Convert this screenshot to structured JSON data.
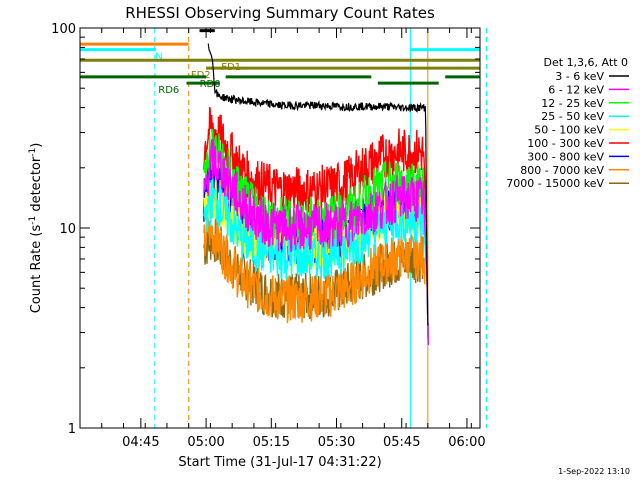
{
  "chart_data": {
    "type": "line",
    "title": "RHESSI Observing Summary Count Rates",
    "xlabel": "Start Time (31-Jul-17 04:31:22)",
    "ylabel_main": "Count Rate (s",
    "ylabel_sup": "-1",
    "ylabel_tail": " detector",
    "ylabel_end": ")",
    "yscale": "log",
    "ylim": [
      1,
      100
    ],
    "xlim_minutes": [
      0,
      92
    ],
    "y_ticks": [
      {
        "v": 1,
        "label": "1"
      },
      {
        "v": 10,
        "label": "10"
      },
      {
        "v": 100,
        "label": "100"
      }
    ],
    "x_ticks": [
      {
        "m": 14,
        "label": "04:45"
      },
      {
        "m": 29,
        "label": "05:00"
      },
      {
        "m": 44,
        "label": "05:15"
      },
      {
        "m": 59,
        "label": "05:30"
      },
      {
        "m": 74,
        "label": "05:45"
      },
      {
        "m": 89,
        "label": "06:00"
      }
    ],
    "legend_header": "Det 1,3,6, Att 0",
    "legend_position": "right",
    "date_stamp": "1-Sep-2022 13:10",
    "series": [
      {
        "name": "3 - 6 keV",
        "color": "#000000",
        "data": [
          [
            29.5,
            80
          ],
          [
            30.3,
            75
          ],
          [
            31,
            50
          ],
          [
            31.6,
            46
          ],
          [
            33,
            45
          ],
          [
            35,
            44
          ],
          [
            38,
            43
          ],
          [
            42,
            42
          ],
          [
            46,
            41
          ],
          [
            50,
            41
          ],
          [
            55,
            41
          ],
          [
            60,
            40.5
          ],
          [
            65,
            40.5
          ],
          [
            70,
            40.5
          ],
          [
            74,
            40
          ],
          [
            77,
            40
          ],
          [
            79.5,
            40
          ],
          [
            79.8,
            6
          ],
          [
            80.1,
            2.6
          ]
        ]
      },
      {
        "name": "6 - 12 keV",
        "color": "#ff00ff",
        "data": [
          [
            28.5,
            14
          ],
          [
            29.5,
            19
          ],
          [
            30.5,
            22
          ],
          [
            31.5,
            21
          ],
          [
            33,
            19
          ],
          [
            35,
            16
          ],
          [
            37,
            13.5
          ],
          [
            40,
            11.5
          ],
          [
            43,
            10.5
          ],
          [
            46,
            10
          ],
          [
            50,
            10
          ],
          [
            54,
            10
          ],
          [
            58,
            10.2
          ],
          [
            61,
            10.5
          ],
          [
            64,
            11
          ],
          [
            67,
            12
          ],
          [
            70,
            13
          ],
          [
            73,
            14
          ],
          [
            76,
            14
          ],
          [
            79,
            14
          ],
          [
            79.8,
            6
          ],
          [
            80.1,
            2.6
          ]
        ]
      },
      {
        "name": "12 - 25 keV",
        "color": "#00ff00",
        "data": [
          [
            28.5,
            17
          ],
          [
            29.5,
            23
          ],
          [
            30.5,
            25
          ],
          [
            31.5,
            24
          ],
          [
            33,
            21
          ],
          [
            35,
            18
          ],
          [
            37,
            15
          ],
          [
            40,
            12.5
          ],
          [
            43,
            11.5
          ],
          [
            46,
            11
          ],
          [
            50,
            11
          ],
          [
            54,
            11
          ],
          [
            58,
            11.3
          ],
          [
            61,
            11.8
          ],
          [
            64,
            13
          ],
          [
            67,
            15
          ],
          [
            70,
            16.5
          ],
          [
            73,
            17
          ],
          [
            76,
            17
          ],
          [
            79,
            16.5
          ],
          [
            79.8,
            6
          ],
          [
            80.1,
            2.6
          ]
        ]
      },
      {
        "name": "25 - 50 keV",
        "color": "#00ffff",
        "data": [
          [
            28.5,
            11
          ],
          [
            29.5,
            13
          ],
          [
            30.5,
            14
          ],
          [
            31.5,
            13.5
          ],
          [
            33,
            12
          ],
          [
            35,
            10.5
          ],
          [
            37,
            9
          ],
          [
            40,
            8
          ],
          [
            43,
            7.5
          ],
          [
            46,
            7.2
          ],
          [
            50,
            7.2
          ],
          [
            54,
            7.2
          ],
          [
            58,
            7.4
          ],
          [
            61,
            7.8
          ],
          [
            64,
            8.5
          ],
          [
            67,
            9.5
          ],
          [
            70,
            10.5
          ],
          [
            73,
            11
          ],
          [
            76,
            11
          ],
          [
            79,
            11
          ],
          [
            79.8,
            6
          ],
          [
            80.1,
            2.6
          ]
        ]
      },
      {
        "name": "50 - 100 keV",
        "color": "#ffff00",
        "data": [
          [
            28.5,
            12
          ],
          [
            30.5,
            15
          ],
          [
            33,
            13
          ],
          [
            37,
            10
          ],
          [
            42,
            8.5
          ],
          [
            50,
            8
          ],
          [
            58,
            8.2
          ],
          [
            64,
            9.2
          ],
          [
            70,
            11.5
          ],
          [
            76,
            12
          ],
          [
            79,
            12
          ]
        ]
      },
      {
        "name": "100 - 300 keV",
        "color": "#ff0000",
        "data": [
          [
            28.5,
            24
          ],
          [
            29.5,
            30
          ],
          [
            30.5,
            32
          ],
          [
            31.5,
            30
          ],
          [
            33,
            27
          ],
          [
            35,
            23
          ],
          [
            37,
            20
          ],
          [
            39,
            18
          ],
          [
            42,
            16.5
          ],
          [
            46,
            15.5
          ],
          [
            50,
            15.5
          ],
          [
            54,
            15.5
          ],
          [
            58,
            16
          ],
          [
            61,
            17
          ],
          [
            64,
            19
          ],
          [
            67,
            21
          ],
          [
            70,
            23
          ],
          [
            73,
            24
          ],
          [
            76,
            24
          ],
          [
            79,
            24
          ],
          [
            79.8,
            6
          ],
          [
            80.1,
            2.6
          ]
        ]
      },
      {
        "name": "300 - 800 keV",
        "color": "#0000ff",
        "data": [
          [
            28.5,
            14
          ],
          [
            29.5,
            17
          ],
          [
            30.5,
            18
          ],
          [
            31.5,
            17
          ],
          [
            33,
            15
          ],
          [
            35,
            13
          ],
          [
            37,
            11
          ],
          [
            40,
            9.5
          ],
          [
            43,
            9
          ],
          [
            46,
            8.7
          ],
          [
            50,
            8.7
          ],
          [
            54,
            8.7
          ],
          [
            58,
            9
          ],
          [
            61,
            9.5
          ],
          [
            64,
            10.5
          ],
          [
            67,
            11.5
          ],
          [
            70,
            12.5
          ],
          [
            73,
            13
          ],
          [
            76,
            13
          ],
          [
            79,
            13
          ],
          [
            79.8,
            6
          ],
          [
            80.1,
            2.6
          ]
        ]
      },
      {
        "name": "800 - 7000 keV",
        "color": "#ff8800",
        "data": [
          [
            28.5,
            8
          ],
          [
            29.5,
            10
          ],
          [
            30.5,
            9.5
          ],
          [
            31.5,
            9
          ],
          [
            33,
            7.5
          ],
          [
            35,
            6.5
          ],
          [
            37,
            5.5
          ],
          [
            40,
            5
          ],
          [
            43,
            4.6
          ],
          [
            46,
            4.4
          ],
          [
            50,
            4.4
          ],
          [
            54,
            4.5
          ],
          [
            58,
            4.7
          ],
          [
            61,
            5
          ],
          [
            64,
            5.6
          ],
          [
            67,
            6.2
          ],
          [
            70,
            6.8
          ],
          [
            73,
            7.2
          ],
          [
            76,
            7.3
          ],
          [
            79,
            7.3
          ],
          [
            79.8,
            6
          ],
          [
            80.1,
            2.6
          ]
        ]
      },
      {
        "name": "7000 - 15000 keV",
        "color": "#8b6914",
        "data": [
          [
            28.5,
            8
          ],
          [
            30.5,
            9
          ],
          [
            35,
            6.5
          ],
          [
            42,
            4.8
          ],
          [
            50,
            4.5
          ],
          [
            58,
            4.7
          ],
          [
            64,
            5.5
          ],
          [
            70,
            6.5
          ],
          [
            76,
            7
          ],
          [
            79,
            7
          ]
        ]
      }
    ],
    "flag_bars": [
      {
        "label": "",
        "color": "#ff8000",
        "y": 83,
        "start": 0,
        "end": 25,
        "label_at": null
      },
      {
        "label": "N",
        "color": "#00ffff",
        "y": 78,
        "start": 0,
        "end": 17.5,
        "label_at": 17.3
      },
      {
        "label": "N",
        "color": "#00ffff",
        "y": 78,
        "start": 76,
        "end": 92,
        "label_at": null
      },
      {
        "label": "FD1",
        "color": "#808000",
        "y": 69,
        "start": 0,
        "end": 92,
        "label_at": 32.5
      },
      {
        "label": "FD2",
        "color": "#808000",
        "y": 63,
        "start": 29,
        "end": 92,
        "label_at": 25.5
      },
      {
        "label": "RD0",
        "color": "#006400",
        "y": 57,
        "start": 0,
        "end": 29,
        "label_at": 27.5
      },
      {
        "label": "",
        "color": "#006400",
        "y": 57,
        "start": 33.5,
        "end": 67,
        "label_at": null
      },
      {
        "label": "",
        "color": "#006400",
        "y": 57,
        "start": 84,
        "end": 92,
        "label_at": null
      },
      {
        "label": "RD6",
        "color": "#006400",
        "y": 53,
        "start": 24.5,
        "end": 32,
        "label_at": 18
      },
      {
        "label": "",
        "color": "#006400",
        "y": 53,
        "start": 68.5,
        "end": 82.5,
        "label_at": null
      },
      {
        "label": "",
        "color": "#000000",
        "y": 97,
        "start": 27.5,
        "end": 31,
        "label_at": null
      }
    ],
    "vertical_lines": [
      {
        "m": 17.2,
        "color": "#00ffff",
        "style": "dashed"
      },
      {
        "m": 25,
        "color": "#ff8000",
        "style": "dashed"
      },
      {
        "m": 76,
        "color": "#00ffff",
        "style": "solid"
      },
      {
        "m": 80,
        "color": "#ff8000",
        "style": "solid"
      },
      {
        "m": 93.5,
        "color": "#00ffff",
        "style": "dashed"
      }
    ]
  }
}
